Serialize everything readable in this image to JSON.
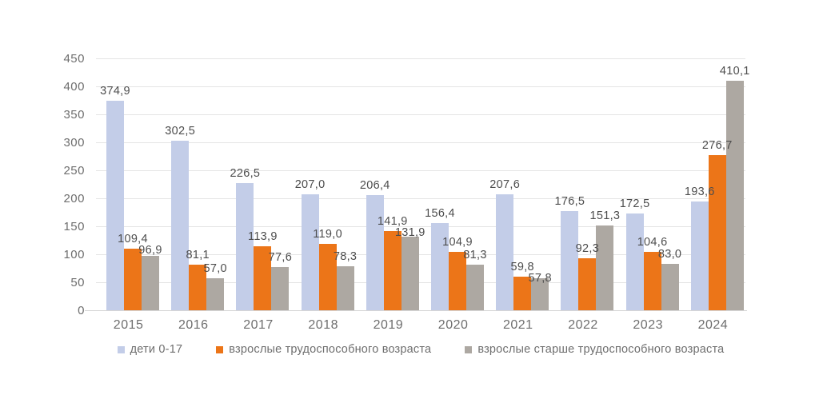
{
  "chart_data": {
    "type": "bar",
    "title": "",
    "xlabel": "",
    "ylabel": "",
    "categories": [
      "2015",
      "2016",
      "2017",
      "2018",
      "2019",
      "2020",
      "2021",
      "2022",
      "2023",
      "2024"
    ],
    "series": [
      {
        "name": "дети 0-17",
        "color": "#c3cde8",
        "values": [
          374.9,
          302.5,
          226.5,
          207.0,
          206.4,
          156.4,
          207.6,
          176.5,
          172.5,
          193.6
        ],
        "labels": [
          "374,9",
          "302,5",
          "226,5",
          "207,0",
          "206,4",
          "156,4",
          "207,6",
          "176,5",
          "172,5",
          "193,6"
        ]
      },
      {
        "name": "взрослые трудоспособного возраста",
        "color": "#ec7518",
        "values": [
          109.4,
          81.1,
          113.9,
          119.0,
          141.9,
          104.9,
          59.8,
          92.3,
          104.6,
          276.7
        ],
        "labels": [
          "109,4",
          "81,1",
          "113,9",
          "119,0",
          "141,9",
          "104,9",
          "59,8",
          "92,3",
          "104,6",
          "276,7"
        ]
      },
      {
        "name": "взрослые старше трудоспособного возраста",
        "color": "#ada8a2",
        "values": [
          96.9,
          57.0,
          77.6,
          78.3,
          131.9,
          81.3,
          57.8,
          151.3,
          83.0,
          410.1
        ],
        "labels": [
          "96,9",
          "57,0",
          "77,6",
          "78,3",
          "131,9",
          "81,3",
          "57,8",
          "151,3",
          "83,0",
          "410,1"
        ]
      }
    ],
    "ylim": [
      0,
      450
    ],
    "yticks": [
      "0",
      "50",
      "100",
      "150",
      "200",
      "250",
      "300",
      "350",
      "400",
      "450"
    ],
    "grid": true,
    "legend_position": "bottom",
    "colors": {
      "gridline": "#e4e4e4",
      "axis_line": "#d6d6d6",
      "tick_text": "#6e6e6e",
      "data_label_text": "#4d4d4d"
    }
  }
}
